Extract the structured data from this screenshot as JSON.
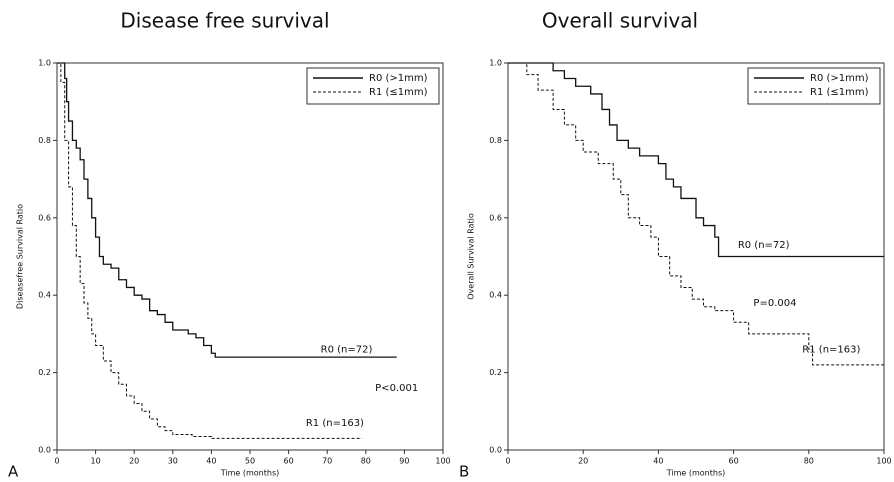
{
  "chart_data": [
    {
      "type": "line",
      "step": true,
      "title": "Disease free survival",
      "panel_label": "A",
      "xlabel": "Time (months)",
      "ylabel": "Diseasefree Survival Ratio",
      "xlim": [
        0,
        100
      ],
      "ylim": [
        0,
        1
      ],
      "xticks": [
        0,
        10,
        20,
        30,
        40,
        50,
        60,
        70,
        80,
        90,
        100
      ],
      "yticks": [
        {
          "value": 0,
          "label": "0.0"
        },
        0.2,
        0.4,
        0.6,
        0.8,
        {
          "value": 1,
          "label": "1.0"
        }
      ],
      "legend": "upper right",
      "series": [
        {
          "name": "R0 (>1mm)",
          "color": "#111111",
          "dashed": false,
          "x": [
            0,
            1,
            2,
            2.5,
            3,
            4,
            5,
            6,
            7,
            8,
            9,
            10,
            11,
            12,
            14,
            16,
            18,
            20,
            22,
            24,
            26,
            28,
            30,
            34,
            36,
            38,
            40,
            41,
            88
          ],
          "values": [
            1,
            1,
            0.96,
            0.9,
            0.85,
            0.8,
            0.78,
            0.75,
            0.7,
            0.65,
            0.6,
            0.55,
            0.5,
            0.48,
            0.47,
            0.44,
            0.42,
            0.4,
            0.39,
            0.36,
            0.35,
            0.33,
            0.31,
            0.3,
            0.29,
            0.27,
            0.25,
            0.24,
            0.24
          ]
        },
        {
          "name": "R1 (≤1mm)",
          "color": "#111111",
          "dashed": true,
          "x": [
            0,
            1,
            2,
            3,
            4,
            5,
            6,
            7,
            8,
            9,
            10,
            12,
            14,
            16,
            18,
            20,
            22,
            24,
            26,
            28,
            30,
            35,
            40,
            79
          ],
          "values": [
            1,
            0.95,
            0.8,
            0.68,
            0.58,
            0.5,
            0.43,
            0.38,
            0.34,
            0.3,
            0.27,
            0.23,
            0.2,
            0.17,
            0.14,
            0.12,
            0.1,
            0.08,
            0.06,
            0.05,
            0.04,
            0.035,
            0.03,
            0.03
          ]
        }
      ],
      "annotations": [
        "R0 (n=72)",
        "P<0.001",
        "R1 (n=163)"
      ]
    },
    {
      "type": "line",
      "step": true,
      "title": "Overall survival",
      "panel_label": "B",
      "xlabel": "Time (months)",
      "ylabel": "Overall Survival Ratio",
      "xlim": [
        0,
        100
      ],
      "ylim": [
        0,
        1
      ],
      "xticks": [
        0,
        20,
        40,
        60,
        80,
        100
      ],
      "yticks": [
        {
          "value": 0,
          "label": "0.0"
        },
        0.2,
        0.4,
        0.6,
        0.8,
        {
          "value": 1,
          "label": "1.0"
        }
      ],
      "legend": "upper right",
      "series": [
        {
          "name": "R0 (>1mm)",
          "color": "#111111",
          "dashed": false,
          "x": [
            0,
            10,
            12,
            15,
            18,
            22,
            25,
            27,
            29,
            32,
            35,
            40,
            42,
            44,
            46,
            50,
            52,
            55,
            56,
            100
          ],
          "values": [
            1,
            1,
            0.98,
            0.96,
            0.94,
            0.92,
            0.88,
            0.84,
            0.8,
            0.78,
            0.76,
            0.74,
            0.7,
            0.68,
            0.65,
            0.6,
            0.58,
            0.55,
            0.5,
            0.5
          ]
        },
        {
          "name": "R1 (≤1mm)",
          "color": "#111111",
          "dashed": true,
          "x": [
            0,
            5,
            8,
            12,
            15,
            18,
            20,
            24,
            28,
            30,
            32,
            35,
            38,
            40,
            43,
            46,
            49,
            52,
            55,
            60,
            64,
            70,
            80,
            81,
            100
          ],
          "values": [
            1,
            0.97,
            0.93,
            0.88,
            0.84,
            0.8,
            0.77,
            0.74,
            0.7,
            0.66,
            0.6,
            0.58,
            0.55,
            0.5,
            0.45,
            0.42,
            0.39,
            0.37,
            0.36,
            0.33,
            0.3,
            0.3,
            0.26,
            0.22,
            0.22
          ]
        }
      ],
      "annotations": [
        "R0 (n=72)",
        "P=0.004",
        "R1 (n=163)"
      ]
    }
  ]
}
